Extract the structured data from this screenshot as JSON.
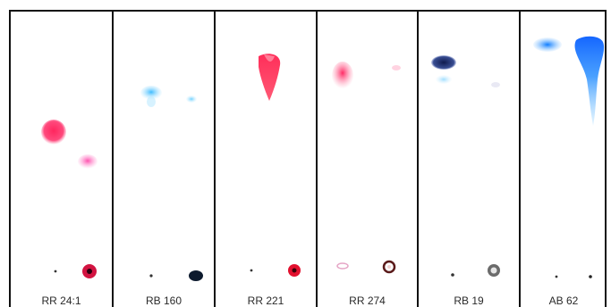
{
  "figure": {
    "lanes": [
      {
        "label": "RR 24:1",
        "dye_color": "#ff2a66",
        "secondary_color": "#ff4fb0"
      },
      {
        "label": "RB 160",
        "dye_color": "#4cc6ff",
        "secondary_color": "#38b7f5"
      },
      {
        "label": "RR 221",
        "dye_color": "#ff1f4a",
        "secondary_color": "#ff3b5c"
      },
      {
        "label": "RR 274",
        "dye_color": "#ff2f6a",
        "secondary_color": "#ffb3cc"
      },
      {
        "label": "RB 19",
        "dye_color": "#1f2e6b",
        "secondary_color": "#8fd8ff"
      },
      {
        "label": "AB 62",
        "dye_color": "#1e8dff",
        "secondary_color": "#2e9cff"
      }
    ]
  }
}
